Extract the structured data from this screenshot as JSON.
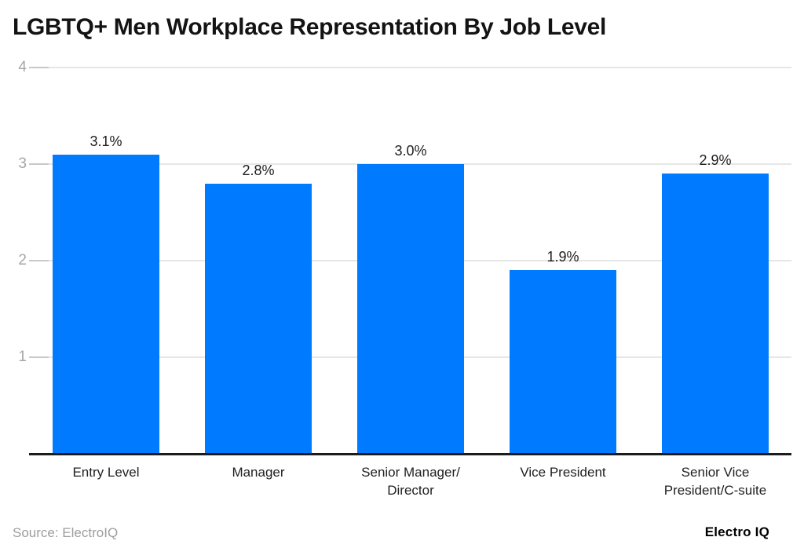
{
  "chart_data": {
    "type": "bar",
    "title": "LGBTQ+ Men Workplace Representation By Job Level",
    "categories": [
      "Entry Level",
      "Manager",
      "Senior Manager/\nDirector",
      "Vice President",
      "Senior Vice\nPresident/C-suite"
    ],
    "values": [
      3.1,
      2.8,
      3.0,
      1.9,
      2.9
    ],
    "data_labels": [
      "3.1%",
      "2.8%",
      "3.0%",
      "1.9%",
      "2.9%"
    ],
    "xlabel": "",
    "ylabel": "",
    "ylim": [
      0,
      4
    ],
    "yticks": [
      1,
      2,
      3,
      4
    ],
    "bar_color": "#007bff",
    "grid": true,
    "legend": false
  },
  "footer": {
    "source": "Source: ElectroIQ",
    "brand": "Electro IQ"
  }
}
